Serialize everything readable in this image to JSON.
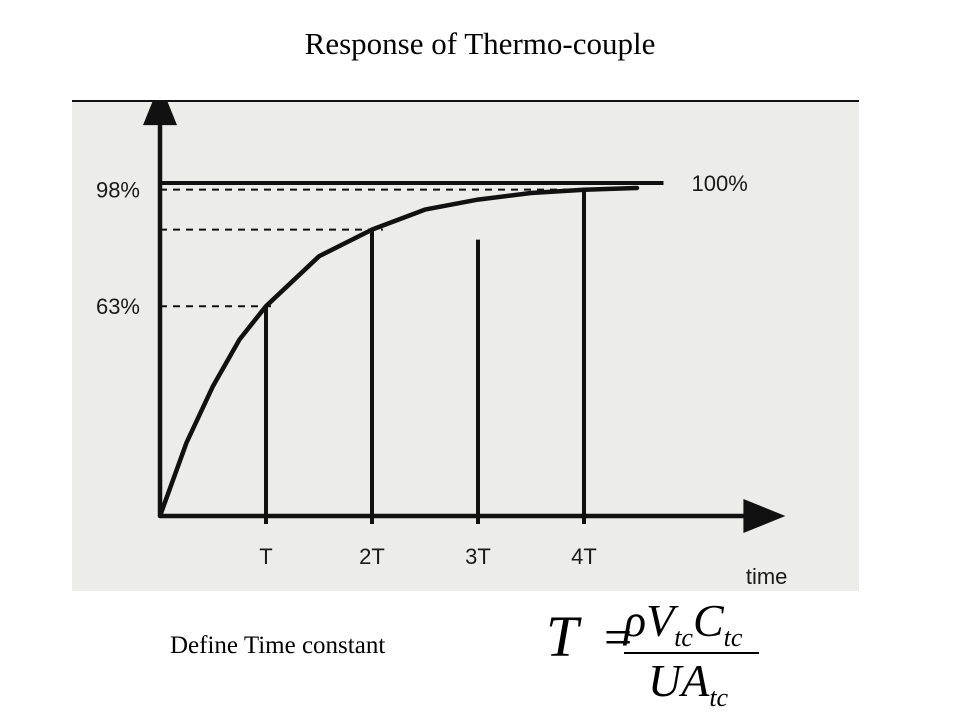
{
  "title": "Response of Thermo-couple",
  "caption": "Define Time constant",
  "formula": {
    "lhs": "T",
    "equals": "=",
    "numerator": [
      {
        "main": "ρV",
        "sub": "tc"
      },
      {
        "main": "C",
        "sub": "tc"
      }
    ],
    "denominator": [
      {
        "main": "UA",
        "sub": "tc"
      }
    ]
  },
  "colors": {
    "panel_background": "#ececea",
    "ink": "#111111"
  },
  "chart_data": {
    "type": "line",
    "title": "",
    "xlabel": "time",
    "ylabel": "",
    "x_ticks": [
      {
        "label": "T",
        "value": 1
      },
      {
        "label": "2T",
        "value": 2
      },
      {
        "label": "3T",
        "value": 3
      },
      {
        "label": "4T",
        "value": 4
      }
    ],
    "y_ticks": [
      {
        "label": "63%",
        "value": 63
      },
      {
        "label": "98%",
        "value": 98
      }
    ],
    "reference_lines": [
      {
        "label": "100%",
        "value": 100,
        "style": "solid"
      },
      {
        "value": 98,
        "style": "dashed"
      },
      {
        "value": 86,
        "style": "dashed"
      },
      {
        "value": 63,
        "style": "dashed"
      }
    ],
    "series": [
      {
        "x": [
          0,
          0.25,
          0.5,
          0.75,
          1,
          1.5,
          2,
          2.5,
          3,
          3.5,
          4,
          4.5
        ],
        "y": [
          0,
          22,
          39,
          53,
          63,
          78,
          86,
          92,
          95,
          97,
          98,
          98.5
        ]
      }
    ],
    "xlim": [
      0,
      5.9
    ],
    "ylim": [
      0,
      130
    ],
    "grid": false,
    "legend": "none"
  }
}
